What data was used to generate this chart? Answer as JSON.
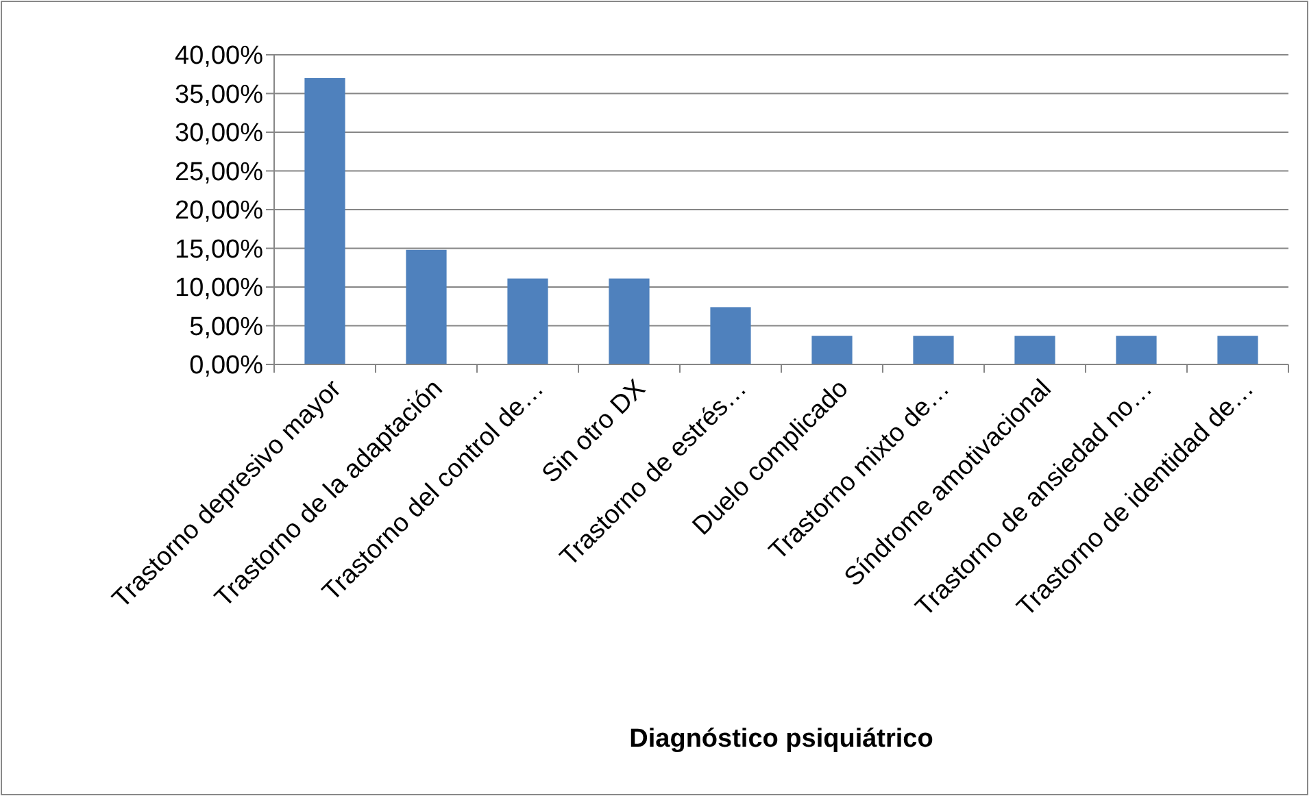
{
  "chart_data": {
    "type": "bar",
    "xlabel": "Diagnóstico psiquiátrico",
    "categories": [
      "Trastorno depresivo mayor",
      "Trastorno de la adaptación",
      "Trastorno del control de…",
      "Sin otro DX",
      "Trastorno de estrés…",
      "Duelo complicado",
      "Trastorno mixto de…",
      "Síndrome amotivacional",
      "Trastorno de ansiedad no…",
      "Trastorno de identidad de…"
    ],
    "values": [
      37,
      14.8,
      11.1,
      11.1,
      7.4,
      3.7,
      3.7,
      3.7,
      3.7,
      3.7
    ],
    "color": "#4f81bd",
    "ylim": [
      0,
      40
    ],
    "yticks": [
      {
        "value": 0,
        "label": "0,00%"
      },
      {
        "value": 5,
        "label": "5,00%"
      },
      {
        "value": 10,
        "label": "10,00%"
      },
      {
        "value": 15,
        "label": "15,00%"
      },
      {
        "value": 20,
        "label": "20,00%"
      },
      {
        "value": 25,
        "label": "25,00%"
      },
      {
        "value": 30,
        "label": "30,00%"
      },
      {
        "value": 35,
        "label": "35,00%"
      },
      {
        "value": 40,
        "label": "40,00%"
      }
    ],
    "grid": "y"
  }
}
